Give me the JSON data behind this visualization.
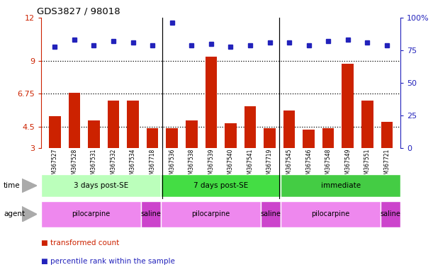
{
  "title": "GDS3827 / 98018",
  "samples": [
    "GSM367527",
    "GSM367528",
    "GSM367531",
    "GSM367532",
    "GSM367534",
    "GSM367718",
    "GSM367536",
    "GSM367538",
    "GSM367539",
    "GSM367540",
    "GSM367541",
    "GSM367719",
    "GSM367545",
    "GSM367546",
    "GSM367548",
    "GSM367549",
    "GSM367551",
    "GSM367721"
  ],
  "transformed_count": [
    5.2,
    6.8,
    4.9,
    6.3,
    6.3,
    4.4,
    4.4,
    4.9,
    9.3,
    4.7,
    5.9,
    4.4,
    5.6,
    4.3,
    4.4,
    8.8,
    6.3,
    4.8
  ],
  "percentile_rank": [
    78,
    83,
    79,
    82,
    81,
    79,
    96,
    79,
    80,
    78,
    79,
    81,
    81,
    79,
    82,
    83,
    81,
    79
  ],
  "ylim_left": [
    3,
    12
  ],
  "ylim_right": [
    0,
    100
  ],
  "yticks_left": [
    3,
    4.5,
    6.75,
    9,
    12
  ],
  "yticks_right": [
    0,
    25,
    50,
    75,
    100
  ],
  "ytick_labels_left": [
    "3",
    "4.5",
    "6.75",
    "9",
    "12"
  ],
  "ytick_labels_right": [
    "0",
    "25",
    "50",
    "75",
    "100%"
  ],
  "hlines": [
    4.5,
    6.75,
    9
  ],
  "bar_color": "#cc2200",
  "dot_color": "#2222bb",
  "sample_bg_color": "#cccccc",
  "time_groups": [
    {
      "label": "3 days post-SE",
      "start": 0,
      "end": 5,
      "color": "#bbffbb"
    },
    {
      "label": "7 days post-SE",
      "start": 6,
      "end": 11,
      "color": "#44dd44"
    },
    {
      "label": "immediate",
      "start": 12,
      "end": 17,
      "color": "#44cc44"
    }
  ],
  "agent_groups": [
    {
      "label": "pilocarpine",
      "start": 0,
      "end": 4,
      "color": "#ee88ee"
    },
    {
      "label": "saline",
      "start": 5,
      "end": 5,
      "color": "#cc44cc"
    },
    {
      "label": "pilocarpine",
      "start": 6,
      "end": 10,
      "color": "#ee88ee"
    },
    {
      "label": "saline",
      "start": 11,
      "end": 11,
      "color": "#cc44cc"
    },
    {
      "label": "pilocarpine",
      "start": 12,
      "end": 16,
      "color": "#ee88ee"
    },
    {
      "label": "saline",
      "start": 17,
      "end": 17,
      "color": "#cc44cc"
    }
  ]
}
